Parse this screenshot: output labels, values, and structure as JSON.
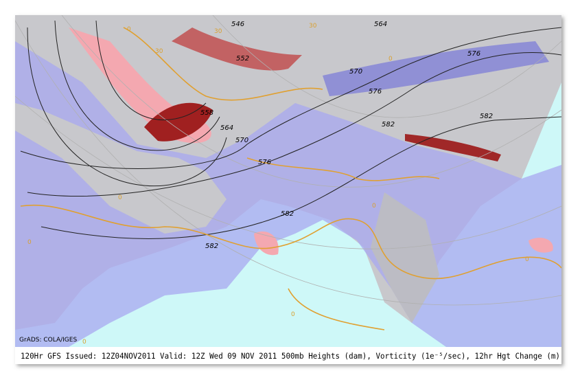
{
  "map": {
    "caption": "120Hr GFS Issued: 12Z04NOV2011 Valid: 12Z Wed 09 NOV 2011  500mb Heights (dam), Vorticity (1e⁻⁵/sec), 12hr Hgt Change (m)",
    "credit": "GrADS: COLA/IGES",
    "contour_labels": [
      "546",
      "552",
      "558",
      "564",
      "570",
      "576",
      "582",
      "582",
      "564",
      "570",
      "576",
      "576",
      "582",
      "582",
      "30",
      "30",
      "30"
    ],
    "change_labels": [
      "0",
      "0",
      "0",
      "0",
      "0",
      "0",
      "0",
      "0"
    ]
  }
}
